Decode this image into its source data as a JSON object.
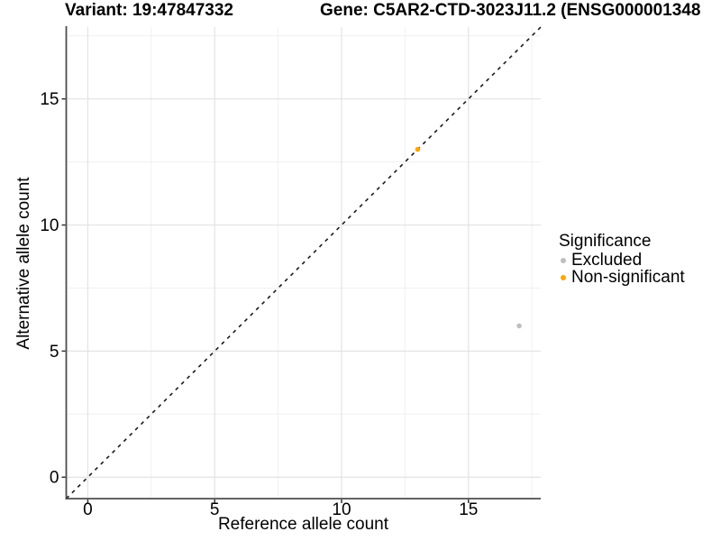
{
  "header": {
    "title_left": "Variant: 19:47847332",
    "title_right": "Gene: C5AR2-CTD-3023J11.2 (ENSG000001348"
  },
  "chart_data": {
    "type": "scatter",
    "title_left": "Variant: 19:47847332",
    "title_right": "Gene: C5AR2-CTD-3023J11.2 (ENSG000001348",
    "xlabel": "Reference allele count",
    "ylabel": "Alternative allele count",
    "xlim": [
      -0.85,
      17.85
    ],
    "ylim": [
      -0.85,
      17.85
    ],
    "xticks": [
      0,
      5,
      10,
      15
    ],
    "yticks": [
      0,
      5,
      10,
      15
    ],
    "xminor": [
      2.5,
      7.5,
      12.5,
      17.5
    ],
    "yminor": [
      2.5,
      7.5,
      12.5,
      17.5
    ],
    "grid": true,
    "legend": {
      "title": "Significance",
      "position": "right"
    },
    "reference_line": {
      "type": "identity",
      "from": [
        -0.85,
        -0.85
      ],
      "to": [
        17.85,
        17.85
      ],
      "style": "dashed",
      "color": "#1a1a1a"
    },
    "series": [
      {
        "name": "Excluded",
        "color": "#BEBEBE",
        "points": [
          [
            17,
            6
          ]
        ]
      },
      {
        "name": "Non-significant",
        "color": "#FFA500",
        "points": [
          [
            13,
            13
          ]
        ]
      }
    ]
  },
  "style": {
    "background": "#FFFFFF",
    "grid_major": "#E3E3E3",
    "grid_minor": "#F0F0F0",
    "axis_line": "#4D4D4D",
    "tick": "#333333",
    "text": "#000000",
    "point_radius": 2.8
  }
}
